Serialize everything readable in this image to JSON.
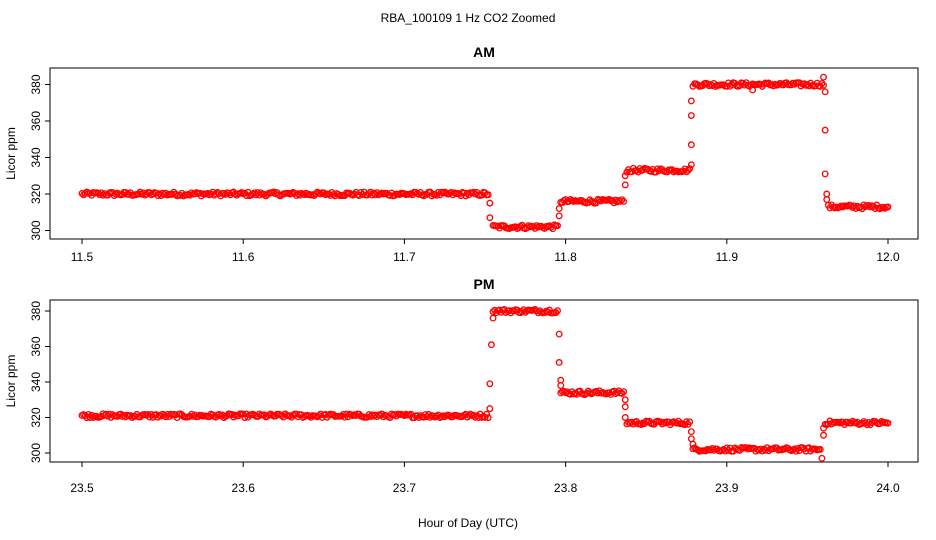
{
  "figure": {
    "title": "RBA_100109  1 Hz CO2 Zoomed",
    "xlabel": "Hour of Day (UTC)",
    "point_color": "#ff0000"
  },
  "chart_data": [
    {
      "type": "scatter",
      "title": "AM",
      "xlabel": "",
      "ylabel": "Licor ppm",
      "xlim": [
        11.5,
        12.0
      ],
      "ylim": [
        300,
        385
      ],
      "xticks": [
        11.5,
        11.6,
        11.7,
        11.8,
        11.9,
        12.0
      ],
      "xtick_labels": [
        "11.5",
        "11.6",
        "11.7",
        "11.8",
        "11.9",
        "12.0"
      ],
      "yticks": [
        300,
        320,
        340,
        360,
        380
      ],
      "ytick_labels": [
        "300",
        "320",
        "340",
        "360",
        "380"
      ],
      "segments": [
        {
          "x": [
            11.5,
            11.752
          ],
          "y": 320
        },
        {
          "x": [
            11.755,
            11.795
          ],
          "y": 302
        },
        {
          "x": [
            11.797,
            11.836
          ],
          "y": 316
        },
        {
          "x": [
            11.838,
            11.877
          ],
          "y": 333
        },
        {
          "x": [
            11.879,
            11.96
          ],
          "y": 380
        },
        {
          "x": [
            11.963,
            12.0
          ],
          "y": 313
        }
      ],
      "transition_points": [
        {
          "x": 11.753,
          "y": 315
        },
        {
          "x": 11.753,
          "y": 307
        },
        {
          "x": 11.796,
          "y": 308
        },
        {
          "x": 11.796,
          "y": 312
        },
        {
          "x": 11.837,
          "y": 325
        },
        {
          "x": 11.837,
          "y": 330
        },
        {
          "x": 11.878,
          "y": 347
        },
        {
          "x": 11.878,
          "y": 363
        },
        {
          "x": 11.878,
          "y": 371
        },
        {
          "x": 11.878,
          "y": 336
        },
        {
          "x": 11.961,
          "y": 376
        },
        {
          "x": 11.961,
          "y": 355
        },
        {
          "x": 11.961,
          "y": 331
        },
        {
          "x": 11.962,
          "y": 320
        },
        {
          "x": 11.962,
          "y": 317
        },
        {
          "x": 11.96,
          "y": 384
        },
        {
          "x": 11.916,
          "y": 377
        }
      ]
    },
    {
      "type": "scatter",
      "title": "PM",
      "xlabel": "",
      "ylabel": "Licor ppm",
      "xlim": [
        23.5,
        24.0
      ],
      "ylim": [
        295,
        385
      ],
      "xticks": [
        23.5,
        23.6,
        23.7,
        23.8,
        23.9,
        24.0
      ],
      "xtick_labels": [
        "23.5",
        "23.6",
        "23.7",
        "23.8",
        "23.9",
        "24.0"
      ],
      "yticks": [
        300,
        320,
        340,
        360,
        380
      ],
      "ytick_labels": [
        "300",
        "320",
        "340",
        "360",
        "380"
      ],
      "segments": [
        {
          "x": [
            23.5,
            23.752
          ],
          "y": 321
        },
        {
          "x": [
            23.755,
            23.795
          ],
          "y": 380
        },
        {
          "x": [
            23.797,
            23.836
          ],
          "y": 334
        },
        {
          "x": [
            23.838,
            23.877
          ],
          "y": 317
        },
        {
          "x": [
            23.879,
            23.958
          ],
          "y": 302
        },
        {
          "x": [
            23.961,
            24.0
          ],
          "y": 317
        }
      ],
      "transition_points": [
        {
          "x": 23.753,
          "y": 325
        },
        {
          "x": 23.753,
          "y": 339
        },
        {
          "x": 23.754,
          "y": 361
        },
        {
          "x": 23.755,
          "y": 376
        },
        {
          "x": 23.796,
          "y": 367
        },
        {
          "x": 23.796,
          "y": 351
        },
        {
          "x": 23.797,
          "y": 341
        },
        {
          "x": 23.797,
          "y": 338
        },
        {
          "x": 23.837,
          "y": 330
        },
        {
          "x": 23.837,
          "y": 326
        },
        {
          "x": 23.837,
          "y": 320
        },
        {
          "x": 23.878,
          "y": 312
        },
        {
          "x": 23.878,
          "y": 308
        },
        {
          "x": 23.879,
          "y": 305
        },
        {
          "x": 23.959,
          "y": 297
        },
        {
          "x": 23.96,
          "y": 310
        },
        {
          "x": 23.96,
          "y": 314
        }
      ]
    }
  ]
}
